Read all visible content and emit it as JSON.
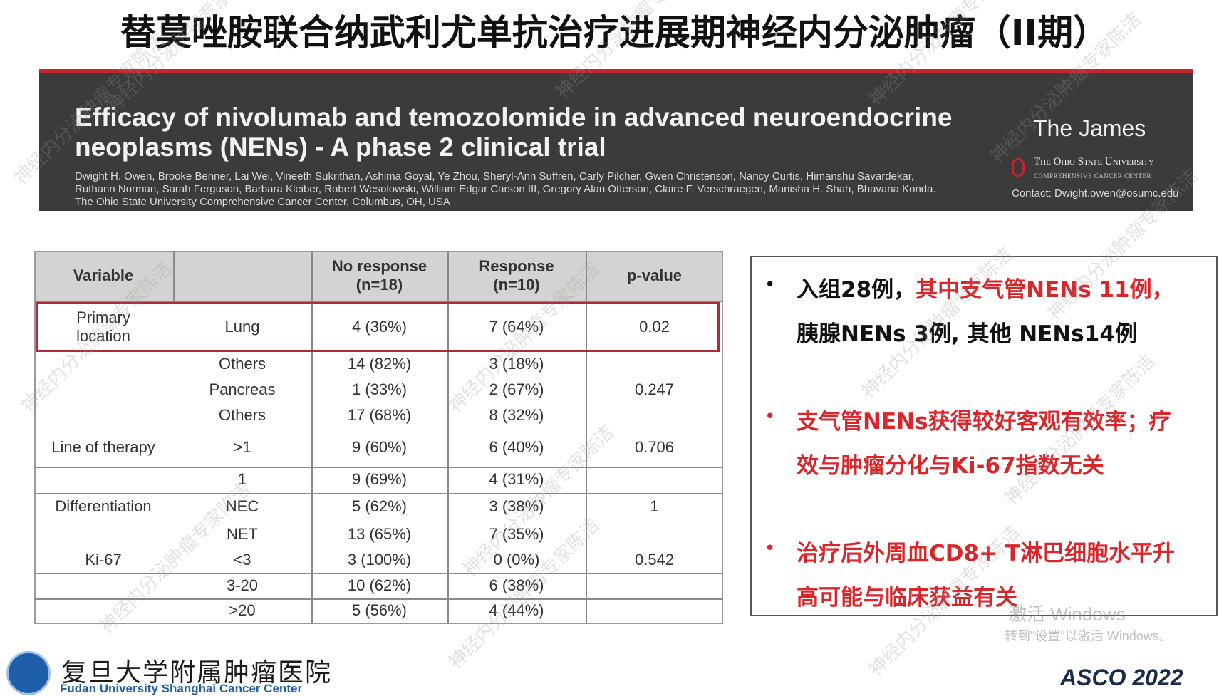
{
  "title": "替莫唑胺联合纳武利尤单抗治疗进展期神经内分泌肿瘤（II期）",
  "banner": {
    "title_lines": [
      "Efficacy of nivolumab and temozolomide in advanced neuroendocrine",
      "neoplasms (NENs) - A phase 2 clinical trial"
    ],
    "author_lines": [
      "Dwight H. Owen, Brooke Benner, Lai Wei, Vineeth Sukrithan, Ashima Goyal, Ye Zhou, Sheryl-Ann Suffren, Carly Pilcher, Gwen Christenson, Nancy Curtis, Himanshu Savardekar,",
      "Ruthann Norman, Sarah Ferguson, Barbara Kleiber, Robert Wesolowski, William Edgar Carson III, Gregory Alan Otterson, Claire F. Verschraegen, Manisha H. Shah, Bhavana Konda.",
      "The Ohio State University Comprehensive Cancer Center, Columbus, OH, USA"
    ],
    "brand": "The James",
    "university": "The Ohio State University",
    "center": "COMPREHENSIVE CANCER CENTER",
    "contact": "Contact: Dwight.owen@osumc.edu"
  },
  "table": {
    "headers": [
      "Variable",
      "No response\n(n=18)",
      "Response\n(n=10)",
      "p-value"
    ],
    "rows": [
      {
        "variable": "Primary\nlocation",
        "subgroup": "Lung",
        "no_response": "4 (36%)",
        "response": "7 (64%)",
        "p_value": "0.02"
      },
      {
        "subgroup": "Others",
        "no_response": "14 (82%)",
        "response": "3 (18%)"
      },
      {
        "subgroup": "Pancreas",
        "no_response": "1 (33%)",
        "response": "2 (67%)",
        "p_value": "0.247"
      },
      {
        "subgroup": "Others",
        "no_response": "17 (68%)",
        "response": "8 (32%)"
      },
      {
        "variable": "Line of therapy",
        "subgroup": ">1",
        "no_response": "9 (60%)",
        "response": "6 (40%)",
        "p_value": "0.706"
      },
      {
        "subgroup": "1",
        "no_response": "9 (69%)",
        "response": "4 (31%)"
      },
      {
        "variable": "Differentiation",
        "subgroup": "NEC",
        "no_response": "5 (62%)",
        "response": "3 (38%)",
        "p_value": "1"
      },
      {
        "subgroup": "NET",
        "no_response": "13 (65%)",
        "response": "7 (35%)"
      },
      {
        "variable": "Ki-67",
        "subgroup": "<3",
        "no_response": "3 (100%)",
        "response": "0 (0%)",
        "p_value": "0.542"
      },
      {
        "subgroup": "3-20",
        "no_response": "10 (62%)",
        "response": "6 (38%)"
      },
      {
        "subgroup": ">20",
        "no_response": "5 (56%)",
        "response": "4 (44%)"
      }
    ]
  },
  "bullets": [
    {
      "lines": [
        [
          {
            "text": "入组28例，",
            "color": "#111111"
          },
          {
            "text": "其中支气管NENs 11例，",
            "color": "#d9262b"
          }
        ],
        [
          {
            "text": "胰腺NENs 3例, 其他 NENs14例",
            "color": "#111111"
          }
        ]
      ]
    },
    {
      "lines": [
        [
          {
            "text": "支气管NENs获得较好客观有效率；疗",
            "color": "#d9262b"
          }
        ],
        [
          {
            "text": "效与肿瘤分化与Ki-67指数无关",
            "color": "#d9262b"
          }
        ]
      ]
    },
    {
      "lines": [
        [
          {
            "text": "治疗后外周血CD8+ T淋巴细胞水平升",
            "color": "#d9262b"
          }
        ],
        [
          {
            "text": "高可能与临床获益有关",
            "color": "#d9262b"
          }
        ]
      ]
    }
  ],
  "bullet_symbol": "•",
  "footer": {
    "hospital_cn": "复旦大学附属肿瘤医院",
    "hospital_en": "Fudan University Shanghai Cancer Center",
    "conference": "ASCO 2022"
  },
  "watermark": "神经内分泌肿瘤专家陈洁",
  "system_notice": [
    "激活 Windows",
    "转到\"设置\"以激活 Windows。"
  ]
}
